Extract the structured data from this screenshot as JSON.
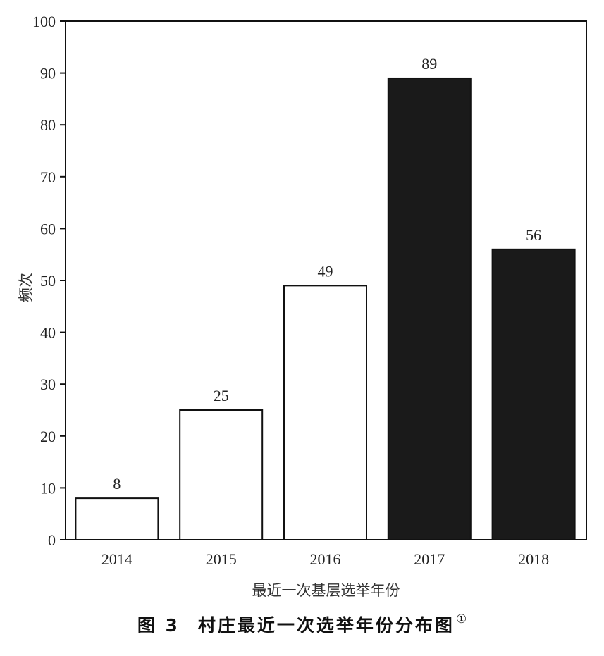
{
  "caption": {
    "figure_label": "图 3",
    "title": "村庄最近一次选举年份分布图",
    "footnote_mark": "①"
  },
  "colors": {
    "bar_fill_light": "#ffffff",
    "bar_fill_dark": "#1a1a1a",
    "stroke": "#111111"
  },
  "chart_data": {
    "type": "bar",
    "categories": [
      "2014",
      "2015",
      "2016",
      "2017",
      "2018"
    ],
    "values": [
      8,
      25,
      49,
      89,
      56
    ],
    "bar_styles": [
      "light",
      "light",
      "light",
      "dark",
      "dark"
    ],
    "data_labels": [
      "8",
      "25",
      "49",
      "89",
      "56"
    ],
    "title": "",
    "xlabel": "最近一次基层选举年份",
    "ylabel": "频次",
    "ylim": [
      0,
      100
    ],
    "yticks": [
      0,
      10,
      20,
      30,
      40,
      50,
      60,
      70,
      80,
      90,
      100
    ],
    "grid": false,
    "legend": "none"
  }
}
